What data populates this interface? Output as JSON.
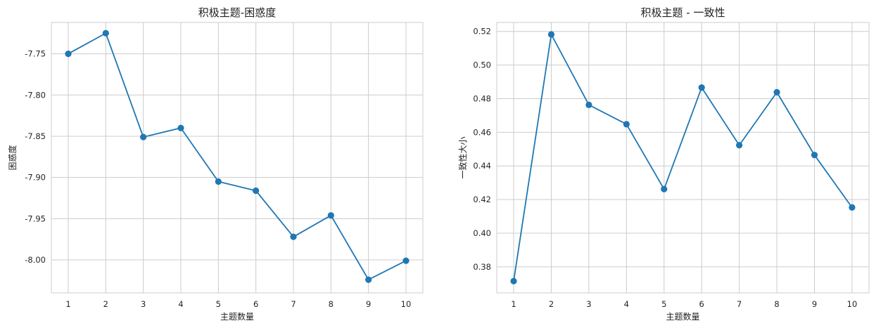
{
  "chart_data": [
    {
      "type": "line",
      "title": "积极主题-困惑度",
      "xlabel": "主题数量",
      "ylabel": "困惑度",
      "x": [
        1,
        2,
        3,
        4,
        5,
        6,
        7,
        8,
        9,
        10
      ],
      "y": [
        -7.75,
        -7.725,
        -7.851,
        -7.84,
        -7.905,
        -7.916,
        -7.972,
        -7.946,
        -8.024,
        -8.001
      ],
      "xticks": [
        1,
        2,
        3,
        4,
        5,
        6,
        7,
        8,
        9,
        10
      ],
      "yticks": [
        -7.75,
        -7.8,
        -7.85,
        -7.9,
        -7.95,
        -8.0
      ],
      "ytick_labels": [
        "-7.75",
        "-7.80",
        "-7.85",
        "-7.90",
        "-7.95",
        "-8.00"
      ],
      "xlim": [
        0.55,
        10.45
      ],
      "ylim": [
        -8.04,
        -7.712
      ],
      "grid": true,
      "color": "#1f77b4",
      "marker": "circle"
    },
    {
      "type": "line",
      "title": "积极主题 - 一致性",
      "xlabel": "主题数量",
      "ylabel": "一致性大小",
      "x": [
        1,
        2,
        3,
        4,
        5,
        6,
        7,
        8,
        9,
        10
      ],
      "y": [
        0.3715,
        0.5182,
        0.4763,
        0.4648,
        0.4262,
        0.4866,
        0.4523,
        0.4838,
        0.4465,
        0.4153
      ],
      "xticks": [
        1,
        2,
        3,
        4,
        5,
        6,
        7,
        8,
        9,
        10
      ],
      "yticks": [
        0.38,
        0.4,
        0.42,
        0.44,
        0.46,
        0.48,
        0.5,
        0.52
      ],
      "ytick_labels": [
        "0.38",
        "0.40",
        "0.42",
        "0.44",
        "0.46",
        "0.48",
        "0.50",
        "0.52"
      ],
      "xlim": [
        0.55,
        10.45
      ],
      "ylim": [
        0.3645,
        0.5253
      ],
      "grid": true,
      "color": "#1f77b4",
      "marker": "circle"
    }
  ]
}
